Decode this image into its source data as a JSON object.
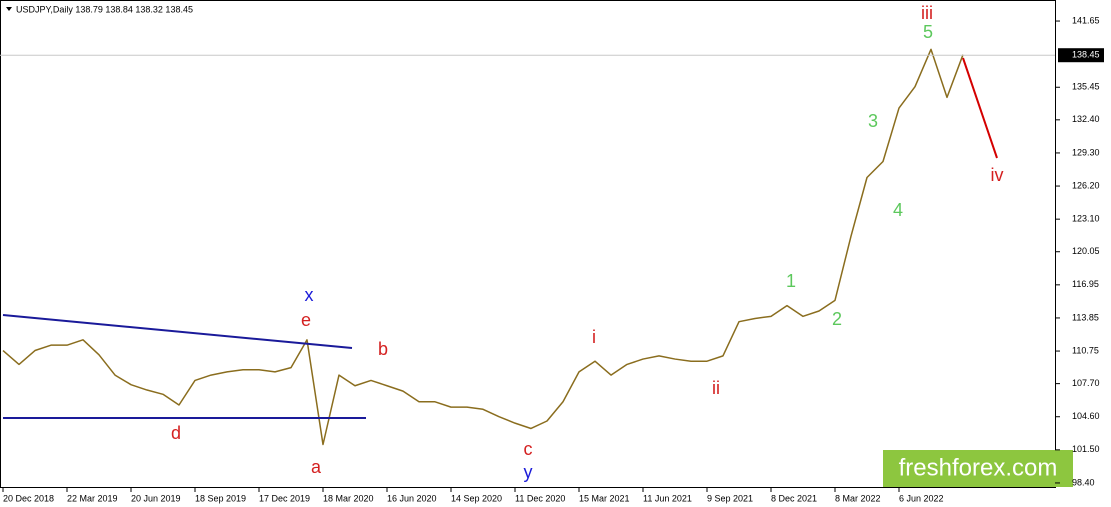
{
  "chart_data": {
    "type": "line",
    "title": "USDJPY,Daily  138.79 138.84 138.32 138.45",
    "categories": [
      "20 Dec 2018",
      null,
      null,
      null,
      "22 Mar 2019",
      null,
      null,
      null,
      "20 Jun 2019",
      null,
      null,
      null,
      "18 Sep 2019",
      null,
      null,
      null,
      "17 Dec 2019",
      null,
      null,
      null,
      "18 Mar 2020",
      null,
      null,
      null,
      "16 Jun 2020",
      null,
      null,
      null,
      "14 Sep 2020",
      null,
      null,
      null,
      "11 Dec 2020",
      null,
      null,
      null,
      "15 Mar 2021",
      null,
      null,
      null,
      "11 Jun 2021",
      null,
      null,
      null,
      "9 Sep 2021",
      null,
      null,
      null,
      "8 Dec 2021",
      null,
      null,
      null,
      "8 Mar 2022",
      null,
      null,
      null,
      "6 Jun 2022",
      null,
      null,
      null,
      null
    ],
    "series": [
      {
        "name": "USDJPY",
        "color": "#8a6d1e",
        "values": [
          110.8,
          109.5,
          110.8,
          111.3,
          111.3,
          111.8,
          110.4,
          108.5,
          107.6,
          107.1,
          106.7,
          105.7,
          108.0,
          108.5,
          108.8,
          109.0,
          109.0,
          108.8,
          109.2,
          111.8,
          102.0,
          108.5,
          107.5,
          108.0,
          107.5,
          107.0,
          106.0,
          106.0,
          105.5,
          105.5,
          105.3,
          104.6,
          104.0,
          103.5,
          104.2,
          106.0,
          108.8,
          109.8,
          108.5,
          109.5,
          110.0,
          110.3,
          110.0,
          109.8,
          109.8,
          110.3,
          113.5,
          113.8,
          114.0,
          115.0,
          114.0,
          114.5,
          115.5,
          121.5,
          127.0,
          128.5,
          133.5,
          135.5,
          139.0,
          134.5,
          138.5
        ]
      }
    ],
    "ylim": [
      97.74,
      143.62
    ],
    "yticks": [
      141.65,
      135.45,
      {
        "value": 132.4,
        "label": "132.40"
      },
      {
        "value": 129.3,
        "label": "129.30"
      },
      {
        "value": 126.2,
        "label": "126.20"
      },
      {
        "value": 123.1,
        "label": "123.10"
      },
      120.05,
      116.95,
      113.85,
      110.75,
      {
        "value": 107.7,
        "label": "107.70"
      },
      {
        "value": 104.6,
        "label": "104.60"
      },
      {
        "value": 101.5,
        "label": "101.50"
      },
      {
        "value": 98.4,
        "label": "98.40"
      }
    ],
    "last_price": 138.45,
    "annotations": [
      {
        "text": "iii",
        "color": "#d42020"
      },
      {
        "text": "5",
        "color": "#5cc85c"
      },
      {
        "text": "3",
        "color": "#5cc85c"
      },
      {
        "text": "4",
        "color": "#5cc85c"
      },
      {
        "text": "iv",
        "color": "#d42020"
      },
      {
        "text": "1",
        "color": "#5cc85c"
      },
      {
        "text": "2",
        "color": "#5cc85c"
      },
      {
        "text": "ii",
        "color": "#d42020"
      },
      {
        "text": "i",
        "color": "#d42020"
      },
      {
        "text": "c",
        "color": "#d42020"
      },
      {
        "text": "y",
        "color": "#1c1cd8"
      },
      {
        "text": "x",
        "color": "#1c1cd8"
      },
      {
        "text": "e",
        "color": "#d42020"
      },
      {
        "text": "b",
        "color": "#d42020"
      },
      {
        "text": "d",
        "color": "#d42020"
      },
      {
        "text": "a",
        "color": "#d42020"
      }
    ],
    "watermark": "freshforex.com"
  }
}
